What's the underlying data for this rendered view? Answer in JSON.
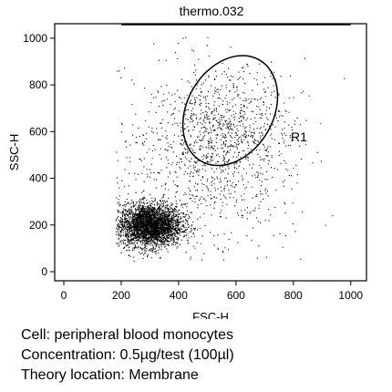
{
  "chart_data": {
    "type": "scatter",
    "title": "thermo.032",
    "xlabel": "FSC-H",
    "ylabel": "SSC-H",
    "xlim": [
      0,
      1023
    ],
    "ylim": [
      0,
      1023
    ],
    "x_ticks": [
      "0",
      "200",
      "400",
      "600",
      "800",
      "1000"
    ],
    "y_ticks": [
      "0",
      "200",
      "400",
      "600",
      "800",
      "1000"
    ],
    "populations": [
      {
        "description": "dense lymphocyte cluster",
        "center": [
          300,
          200
        ],
        "spread": [
          55,
          45
        ],
        "count": 3400
      },
      {
        "description": "monocyte population",
        "center": [
          560,
          580
        ],
        "spread": [
          110,
          140
        ],
        "count": 900
      },
      {
        "description": "scattered events",
        "center": [
          430,
          430
        ],
        "spread": [
          220,
          230
        ],
        "count": 600
      }
    ],
    "gates": [
      {
        "label": "R1",
        "shape": "ellipse",
        "center": [
          580,
          690
        ],
        "radii": [
          150,
          250
        ],
        "rotation_deg": 30
      }
    ]
  },
  "caption": {
    "cell": "Cell: peripheral blood monocytes",
    "concentration": "Concentration: 0.5µg/test (100µl)",
    "location": "Theory location: Membrane"
  }
}
